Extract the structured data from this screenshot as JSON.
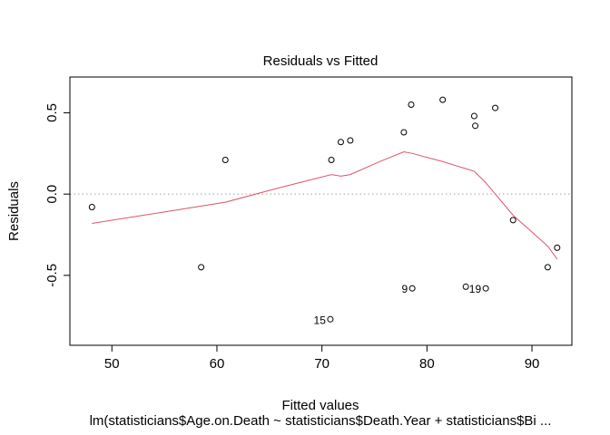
{
  "chart_data": {
    "type": "scatter",
    "title": "Residuals vs Fitted",
    "xlabel": "Fitted values",
    "ylabel": "Residuals",
    "subtitle": "lm(statisticians$Age.on.Death ~ statisticians$Death.Year + statisticians$Bi ...",
    "xlim": [
      46.0,
      93.8
    ],
    "ylim": [
      -0.93,
      0.72
    ],
    "x_ticks": [
      50,
      60,
      70,
      80,
      90
    ],
    "y_ticks": [
      -0.5,
      0.0,
      0.5
    ],
    "x_tick_labels": [
      "50",
      "60",
      "70",
      "80",
      "90"
    ],
    "y_tick_labels": [
      "-0.5",
      "0.0",
      "0.5"
    ],
    "grid": false,
    "reference_line": {
      "y": 0.0,
      "style": "dotted",
      "color": "#a0a0a0"
    },
    "points": [
      {
        "x": 48.1,
        "y": -0.08
      },
      {
        "x": 58.5,
        "y": -0.45
      },
      {
        "x": 60.8,
        "y": 0.21
      },
      {
        "x": 70.8,
        "y": -0.77,
        "label": "15"
      },
      {
        "x": 70.9,
        "y": 0.21
      },
      {
        "x": 71.8,
        "y": 0.32
      },
      {
        "x": 72.7,
        "y": 0.33
      },
      {
        "x": 77.8,
        "y": 0.38
      },
      {
        "x": 78.5,
        "y": 0.55
      },
      {
        "x": 78.6,
        "y": -0.58,
        "label": "9"
      },
      {
        "x": 81.5,
        "y": 0.58
      },
      {
        "x": 83.7,
        "y": -0.57
      },
      {
        "x": 84.5,
        "y": 0.48
      },
      {
        "x": 84.6,
        "y": 0.42
      },
      {
        "x": 85.6,
        "y": -0.58,
        "label": "19"
      },
      {
        "x": 86.5,
        "y": 0.53
      },
      {
        "x": 88.2,
        "y": -0.16
      },
      {
        "x": 91.5,
        "y": -0.45
      },
      {
        "x": 92.4,
        "y": -0.33
      }
    ],
    "smooth_line": {
      "color": "#df536b",
      "x": [
        48.1,
        55.0,
        60.8,
        66.0,
        70.9,
        71.8,
        72.7,
        75.5,
        77.8,
        78.6,
        81.5,
        84.5,
        85.6,
        88.2,
        91.5,
        92.4
      ],
      "y": [
        -0.18,
        -0.11,
        -0.05,
        0.04,
        0.12,
        0.11,
        0.12,
        0.2,
        0.26,
        0.25,
        0.2,
        0.14,
        0.07,
        -0.13,
        -0.32,
        -0.4
      ]
    }
  }
}
